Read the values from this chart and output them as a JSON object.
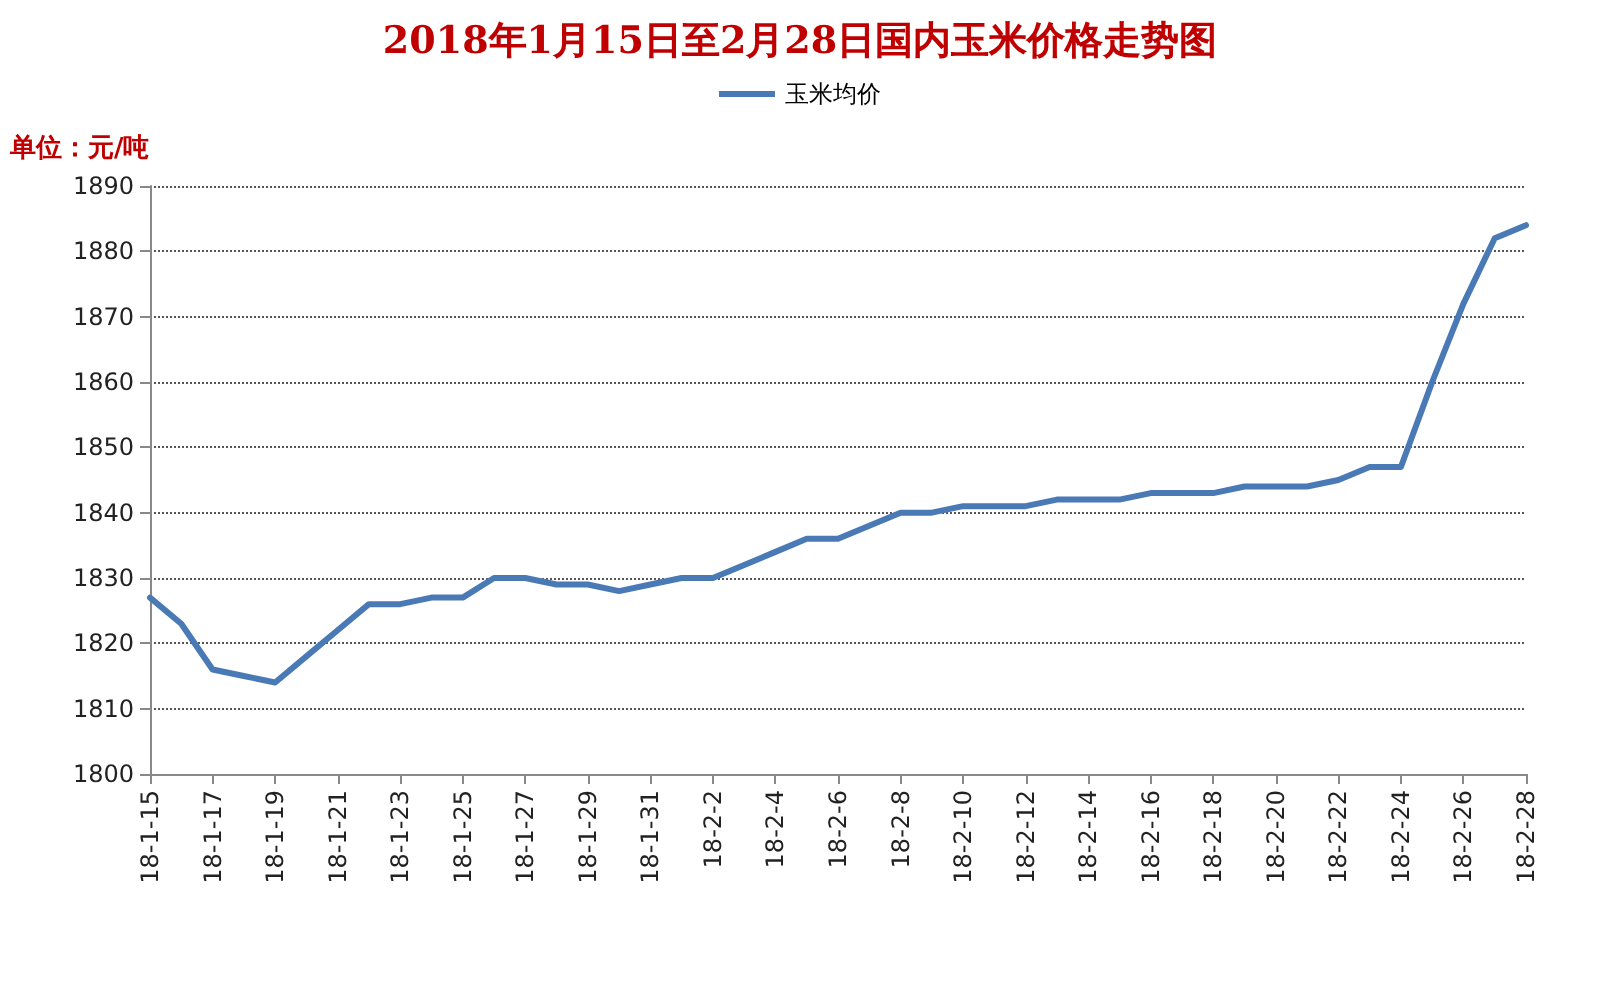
{
  "chart_data": {
    "type": "line",
    "title": "2018年1月15日至2月28日国内玉米价格走势图",
    "ylabel": "单位：元/吨",
    "categories": [
      "18-1-15",
      null,
      "18-1-17",
      null,
      "18-1-19",
      null,
      "18-1-21",
      null,
      "18-1-23",
      null,
      "18-1-25",
      null,
      "18-1-27",
      null,
      "18-1-29",
      null,
      "18-1-31",
      null,
      "18-2-2",
      null,
      "18-2-4",
      null,
      "18-2-6",
      null,
      "18-2-8",
      null,
      "18-2-10",
      null,
      "18-2-12",
      null,
      "18-2-14",
      null,
      "18-2-16",
      null,
      "18-2-18",
      null,
      "18-2-20",
      null,
      "18-2-22",
      null,
      "18-2-24",
      null,
      "18-2-26",
      null,
      "18-2-28"
    ],
    "series": [
      {
        "name": "玉米均价",
        "color": "#4a7ab5",
        "values": [
          1827,
          1823,
          1816,
          1815,
          1814,
          1818,
          1822,
          1826,
          1826,
          1827,
          1827,
          1830,
          1830,
          1829,
          1829,
          1828,
          1829,
          1830,
          1830,
          1832,
          1834,
          1836,
          1836,
          1838,
          1840,
          1840,
          1841,
          1841,
          1841,
          1842,
          1842,
          1842,
          1843,
          1843,
          1843,
          1844,
          1844,
          1844,
          1845,
          1847,
          1847,
          1860,
          1872,
          1882,
          1884
        ]
      }
    ],
    "ylim": [
      1800,
      1890
    ],
    "yticks": [
      1800,
      1810,
      1820,
      1830,
      1840,
      1850,
      1860,
      1870,
      1880,
      1890
    ],
    "grid": "y",
    "legend": "top",
    "marker": "none",
    "line_style": "solid"
  }
}
